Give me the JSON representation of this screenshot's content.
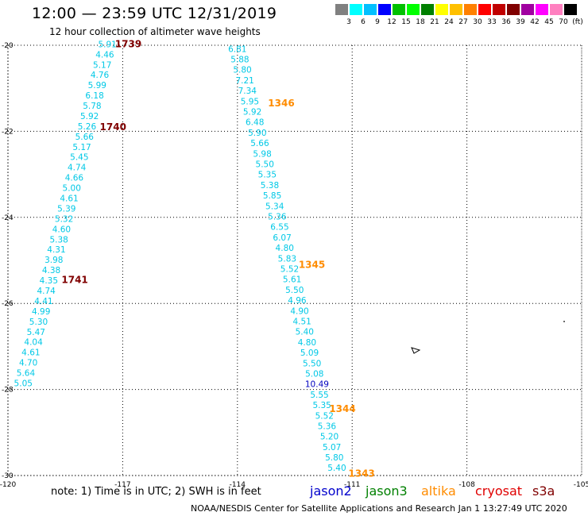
{
  "title": "12:00 — 23:59 UTC 12/31/2019",
  "subtitle": "12 hour collection of altimeter wave heights",
  "scale": {
    "colors": [
      "#808080",
      "#00ffff",
      "#00c0ff",
      "#0000ff",
      "#00c000",
      "#00ff00",
      "#008000",
      "#ffff00",
      "#ffc000",
      "#ff8000",
      "#ff0000",
      "#c00000",
      "#800000",
      "#a000a0",
      "#ff00ff",
      "#ff80c0",
      "#000000"
    ],
    "labels": [
      "3",
      "6",
      "9",
      "12",
      "15",
      "18",
      "21",
      "24",
      "27",
      "30",
      "33",
      "36",
      "39",
      "42",
      "45",
      "70",
      "(ft)"
    ]
  },
  "chart_data": {
    "type": "map",
    "lat_range": [
      -30,
      -20
    ],
    "lon_range": [
      -120,
      -105
    ],
    "lat_ticks": [
      "-20",
      "-22",
      "-24",
      "-26",
      "-28",
      "-30"
    ],
    "lon_ticks": [
      "-120",
      "-117",
      "-114",
      "-111",
      "-108",
      "-105"
    ],
    "west_track": {
      "values": [
        "5.91",
        "4.46",
        "5.17",
        "4.76",
        "5.99",
        "6.18",
        "5.78",
        "5.92",
        "5.26",
        "5.66",
        "5.17",
        "5.45",
        "4.74",
        "4.66",
        "5.00",
        "4.61",
        "5.39",
        "5.32",
        "4.60",
        "5.38",
        "4.31",
        "3.98",
        "4.38",
        "4.35",
        "4.74",
        "4.41",
        "4.99",
        "5.30",
        "5.47",
        "4.04",
        "4.61",
        "4.70",
        "5.64",
        "5.05"
      ],
      "times": [
        {
          "label": "1739",
          "color": "#800000"
        },
        {
          "label": "1740",
          "color": "#800000"
        },
        {
          "label": "1741",
          "color": "#800000"
        }
      ]
    },
    "east_track": {
      "values": [
        "6.81",
        "5.88",
        "5.80",
        "7.21",
        "7.34",
        "5.95",
        "5.92",
        "6.48",
        "5.90",
        "5.66",
        "5.98",
        "5.50",
        "5.35",
        "5.38",
        "5.85",
        "5.34",
        "5.36",
        "6.55",
        "6.07",
        "4.80",
        "5.83",
        "5.52",
        "5.61",
        "5.50",
        "4.96",
        "4.90",
        "4.51",
        "5.40",
        "4.80",
        "5.09",
        "5.50",
        "5.08",
        "10.49",
        "5.55",
        "5.35",
        "5.52",
        "5.36",
        "5.20",
        "5.07",
        "5.80",
        "5.40"
      ],
      "special": {
        "index": 32,
        "color": "#0000c0"
      },
      "times": [
        {
          "label": "1346",
          "color": "#ff8c00"
        },
        {
          "label": "1345",
          "color": "#ff8c00"
        },
        {
          "label": "1344",
          "color": "#ff8c00"
        },
        {
          "label": "1343",
          "color": "#ff8c00"
        }
      ]
    }
  },
  "note": "note:  1) Time is in UTC; 2) SWH is in feet",
  "satellites": [
    {
      "name": "jason2",
      "color": "#0000cc"
    },
    {
      "name": "jason3",
      "color": "#008000"
    },
    {
      "name": "altika",
      "color": "#ff8c00"
    },
    {
      "name": "cryosat",
      "color": "#e00000"
    },
    {
      "name": "s3a",
      "color": "#800000"
    }
  ],
  "footer": "NOAA/NESDIS Center for Satellite Applications and Research     Jan  1 13:27:49 UTC 2020"
}
